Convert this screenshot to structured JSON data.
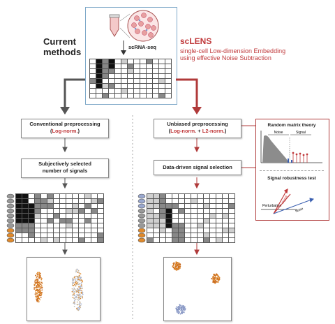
{
  "top": {
    "method_label": "scRNA-seq"
  },
  "left": {
    "heading": "Current methods",
    "box1": {
      "line1": "Conventional preprocessing",
      "paren_open": "(",
      "highlight": "Log-norm.",
      "paren_close": ")"
    },
    "box2": {
      "line1": "Subjectively selected",
      "line2": "number of signals"
    }
  },
  "right": {
    "title": "scLENS",
    "subtitle_line1": "single-cell Low-dimension Embedding",
    "subtitle_line2": "using effective Noise Subtraction",
    "box1": {
      "line1": "Unbiased preprocessing",
      "paren_open": "(",
      "highlight1": "Log-norm.",
      "plus": " + ",
      "highlight2": "L2-norm.",
      "paren_close": ")"
    },
    "box2": {
      "line1": "Data-driven signal selection"
    }
  },
  "panel": {
    "rmt_title": "Random matrix theory",
    "noise_label": "Noise",
    "signal_label": "Signal",
    "robust_title": "Signal robustness test",
    "perturbation_label": "Perturbation",
    "signal_label2": "Signal",
    "noise_label2": "Noise"
  },
  "colors": {
    "accent_red": "#c0393b",
    "arrow_gray": "#555555",
    "orange": "#e08a2c",
    "blue_cluster": "#9aa8cf"
  }
}
